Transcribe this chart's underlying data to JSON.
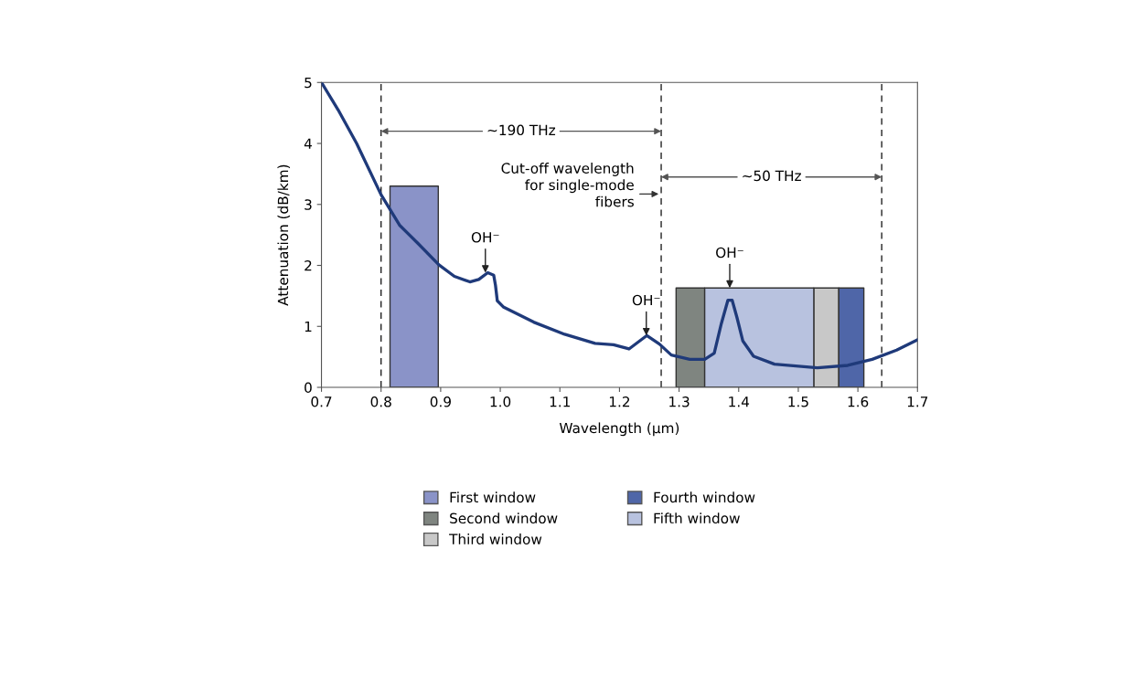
{
  "chart_data": {
    "type": "line",
    "xlabel": "Wavelength (μm)",
    "ylabel": "Attenuation (dB/km)",
    "xlim": [
      0.7,
      1.7
    ],
    "ylim": [
      0,
      5
    ],
    "xticks": [
      0.7,
      0.8,
      0.9,
      {
        "value": 1,
        "label": "1.0"
      },
      1.1,
      1.2,
      1.3,
      1.4,
      1.5,
      1.6,
      1.7
    ],
    "yticks": [
      0,
      1,
      2,
      3,
      4,
      5
    ],
    "grid": false,
    "legend": "bottom",
    "series": [
      {
        "name": "First window",
        "type": "area",
        "color": "#8a93c8",
        "x": [
          0.815,
          0.896
        ],
        "values": [
          3.3,
          3.3
        ]
      },
      {
        "name": "Second window",
        "type": "area",
        "color": "#7f8580",
        "x": [
          1.295,
          1.343
        ],
        "values": [
          1.63,
          1.63
        ]
      },
      {
        "name": "Third window",
        "type": "area",
        "color": "#c8c8c8",
        "x": [
          1.526,
          1.568
        ],
        "values": [
          1.63,
          1.63
        ]
      },
      {
        "name": "Fourth window",
        "type": "area",
        "color": "#4f66a8",
        "x": [
          1.568,
          1.61
        ],
        "values": [
          1.63,
          1.63
        ]
      },
      {
        "name": "Fifth window",
        "type": "area",
        "color": "#b8c2df",
        "x": [
          1.343,
          1.526
        ],
        "values": [
          1.63,
          1.63
        ]
      },
      {
        "color": "#1f3a7a",
        "x": [
          0.7,
          0.728,
          0.759,
          0.8,
          0.831,
          0.862,
          0.897,
          0.923,
          0.949,
          0.964,
          0.979,
          0.989,
          0.992,
          0.995,
          1.005,
          1.056,
          1.108,
          1.159,
          1.19,
          1.216,
          1.246,
          1.267,
          1.287,
          1.318,
          1.343,
          1.359,
          1.371,
          1.382,
          1.389,
          1.397,
          1.407,
          1.425,
          1.46,
          1.532,
          1.583,
          1.624,
          1.665,
          1.7
        ],
        "values": [
          5.0,
          4.55,
          4.0,
          3.16,
          2.66,
          2.36,
          2.01,
          1.82,
          1.73,
          1.77,
          1.88,
          1.84,
          1.67,
          1.42,
          1.32,
          1.07,
          0.87,
          0.72,
          0.7,
          0.63,
          0.85,
          0.71,
          0.53,
          0.46,
          0.46,
          0.56,
          1.05,
          1.43,
          1.43,
          1.15,
          0.76,
          0.51,
          0.38,
          0.32,
          0.36,
          0.46,
          0.61,
          0.78
        ]
      }
    ],
    "ref_lines": [
      {
        "axis": "x",
        "value": 0.8,
        "label": null,
        "line_style": "dashed"
      },
      {
        "axis": "x",
        "value": 1.27,
        "label": "Cut-off wavelength\nfor single-mode\nfibers",
        "line_style": "dashed"
      },
      {
        "axis": "x",
        "value": 1.64,
        "label": null,
        "line_style": "dashed"
      }
    ],
    "annotations": [
      {
        "text": "~190 THz",
        "x": 1.27,
        "y": 4.2
      },
      {
        "text": "~50 THz",
        "x": 1.64,
        "y": 3.45
      },
      {
        "text": "OH⁻",
        "x": 0.975,
        "y": 1.88
      },
      {
        "text": "OH⁻",
        "x": 1.245,
        "y": 0.85
      },
      {
        "text": "OH⁻",
        "x": 1.385,
        "y": 1.63
      }
    ]
  }
}
